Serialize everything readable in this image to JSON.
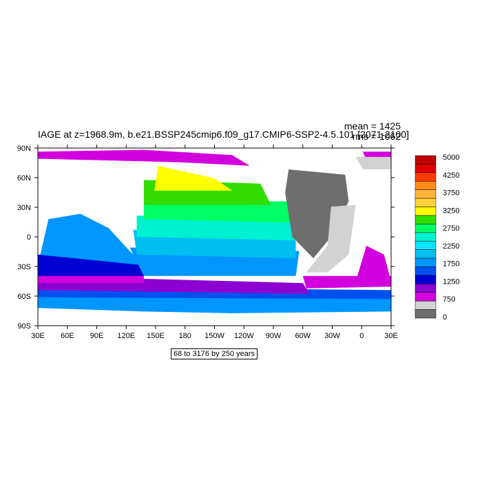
{
  "title": "IAGE at z=1968.9m, b.e21.BSSP245cmip6.f09_g17.CMIP6-SSP2-4.5.101 [2071-2100]",
  "stats": {
    "mean": "mean = 1425",
    "rms": "rms = 1062"
  },
  "contour_info": "68 to 3176 by 250 years",
  "lon_labels": [
    "30E",
    "60E",
    "90E",
    "120E",
    "150E",
    "180",
    "150W",
    "120W",
    "90W",
    "60W",
    "30W",
    "0",
    "30E"
  ],
  "lat_labels": [
    "90N",
    "60N",
    "30N",
    "0",
    "30S",
    "60S",
    "90S"
  ],
  "colorbar": {
    "labels": [
      "5000",
      "4250",
      "3750",
      "3250",
      "2750",
      "2250",
      "1750",
      "1250",
      "750",
      "0"
    ],
    "colors": [
      "#c00000",
      "#e00000",
      "#ff3c00",
      "#ff8c1a",
      "#ffb43c",
      "#ffd23c",
      "#ffff00",
      "#32dc00",
      "#00ff64",
      "#00f0d2",
      "#00e6ff",
      "#00bef0",
      "#0096ff",
      "#0050f0",
      "#0000d2",
      "#8c00d2",
      "#d200dc",
      "#d2d2d2",
      "#6e6e6e"
    ]
  },
  "map_colors": {
    "land": "#ffffff",
    "mask_light": "#d2d2d2",
    "mask_dark": "#6e6e6e",
    "bands": [
      "#ffff00",
      "#32dc00",
      "#00ff64",
      "#00f0d2",
      "#00e6ff",
      "#00bef0",
      "#0096ff",
      "#0050f0",
      "#0000d2",
      "#8c00d2",
      "#d200dc"
    ]
  }
}
